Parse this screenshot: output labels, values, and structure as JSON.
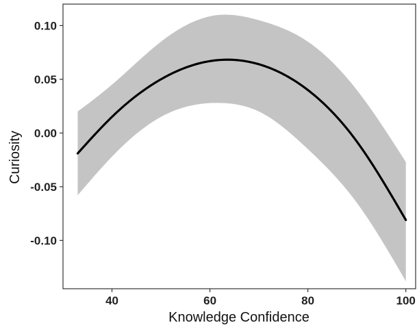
{
  "chart_data": {
    "type": "line",
    "title": "",
    "xlabel": "Knowledge Confidence",
    "ylabel": "Curiosity",
    "xlim": [
      30,
      102
    ],
    "ylim": [
      -0.145,
      0.12
    ],
    "grid": false,
    "legend": "none",
    "x_ticks": [
      {
        "value": 40,
        "label": "40"
      },
      {
        "value": 60,
        "label": "60"
      },
      {
        "value": 80,
        "label": "80"
      },
      {
        "value": 100,
        "label": "100"
      }
    ],
    "y_ticks": [
      {
        "value": 0.1,
        "label": "0.10"
      },
      {
        "value": 0.05,
        "label": "0.05"
      },
      {
        "value": 0.0,
        "label": "0.00"
      },
      {
        "value": -0.05,
        "label": "-0.05"
      },
      {
        "value": -0.1,
        "label": "-0.10"
      }
    ],
    "series": [
      {
        "x": [
          33,
          40,
          50,
          62,
          70,
          80,
          90,
          100
        ],
        "y": [
          -0.019,
          0.015,
          0.05,
          0.068,
          0.064,
          0.04,
          -0.008,
          -0.081
        ],
        "lower": [
          -0.058,
          -0.022,
          0.015,
          0.028,
          0.02,
          -0.015,
          -0.065,
          -0.138
        ],
        "upper": [
          0.02,
          0.045,
          0.085,
          0.11,
          0.105,
          0.085,
          0.04,
          -0.027
        ]
      }
    ],
    "colors": {
      "line": "#000000",
      "band": "#c4c4c4",
      "axis": "#333333",
      "text": "#222222"
    }
  }
}
